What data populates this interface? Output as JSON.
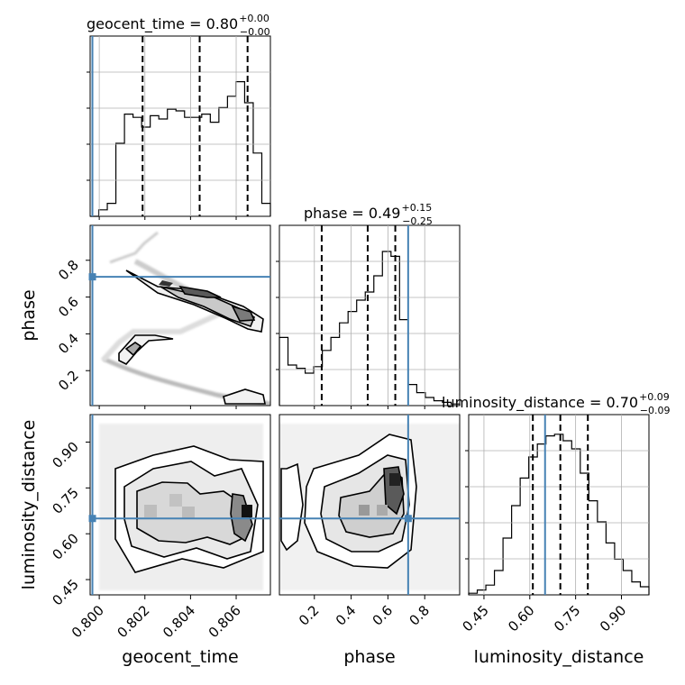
{
  "chart_data": {
    "type": "corner",
    "parameters": [
      "geocent_time",
      "phase",
      "luminosity_distance"
    ],
    "truth_color": "#4682b4",
    "truths": {
      "geocent_time": 0.7997,
      "phase": 0.71,
      "luminosity_distance": 0.65
    },
    "axis_labels": {
      "geocent_time": "geocent_time",
      "phase": "phase",
      "luminosity_distance": "luminosity_distance"
    },
    "titles": {
      "geocent_time": {
        "main": "geocent_time = 0.80",
        "plus": "+0.00",
        "minus": "−0.00"
      },
      "phase": {
        "main": "phase = 0.49",
        "plus": "+0.15",
        "minus": "−0.25"
      },
      "luminosity_distance": {
        "main": "luminosity_distance = 0.70",
        "plus": "+0.09",
        "minus": "−0.09"
      }
    },
    "ranges": {
      "geocent_time": [
        0.7996,
        0.8075
      ],
      "phase": [
        0.01,
        0.99
      ],
      "luminosity_distance": [
        0.4,
        0.99
      ]
    },
    "ticks": {
      "geocent_time": {
        "values": [
          0.8,
          0.802,
          0.804,
          0.806
        ],
        "labels": [
          "0.800",
          "0.802",
          "0.804",
          "0.806"
        ]
      },
      "phase": {
        "values": [
          0.2,
          0.4,
          0.6,
          0.8
        ],
        "labels": [
          "0.2",
          "0.4",
          "0.6",
          "0.8"
        ]
      },
      "luminosity_distance": {
        "values": [
          0.45,
          0.6,
          0.75,
          0.9
        ],
        "labels": [
          "0.45",
          "0.60",
          "0.75",
          "0.90"
        ]
      }
    },
    "quantiles": {
      "geocent_time": [
        0.8019,
        0.8044,
        0.8065
      ],
      "phase": [
        0.24,
        0.49,
        0.64
      ],
      "luminosity_distance": [
        0.61,
        0.7,
        0.79
      ]
    },
    "histograms": {
      "geocent_time": [
        0.0,
        0.04,
        0.08,
        0.45,
        0.63,
        0.61,
        0.55,
        0.62,
        0.6,
        0.66,
        0.65,
        0.61,
        0.61,
        0.63,
        0.58,
        0.67,
        0.74,
        0.83,
        0.7,
        0.39,
        0.08
      ],
      "phase": [
        0.42,
        0.25,
        0.23,
        0.2,
        0.24,
        0.34,
        0.42,
        0.51,
        0.58,
        0.65,
        0.7,
        0.8,
        0.95,
        0.92,
        0.53,
        0.13,
        0.08,
        0.05,
        0.03,
        0.02,
        0.01
      ],
      "luminosity_distance": [
        0.01,
        0.03,
        0.06,
        0.15,
        0.35,
        0.55,
        0.72,
        0.85,
        0.93,
        0.98,
        0.99,
        0.95,
        0.9,
        0.75,
        0.58,
        0.45,
        0.32,
        0.22,
        0.15,
        0.08,
        0.05
      ]
    },
    "grid": true
  }
}
